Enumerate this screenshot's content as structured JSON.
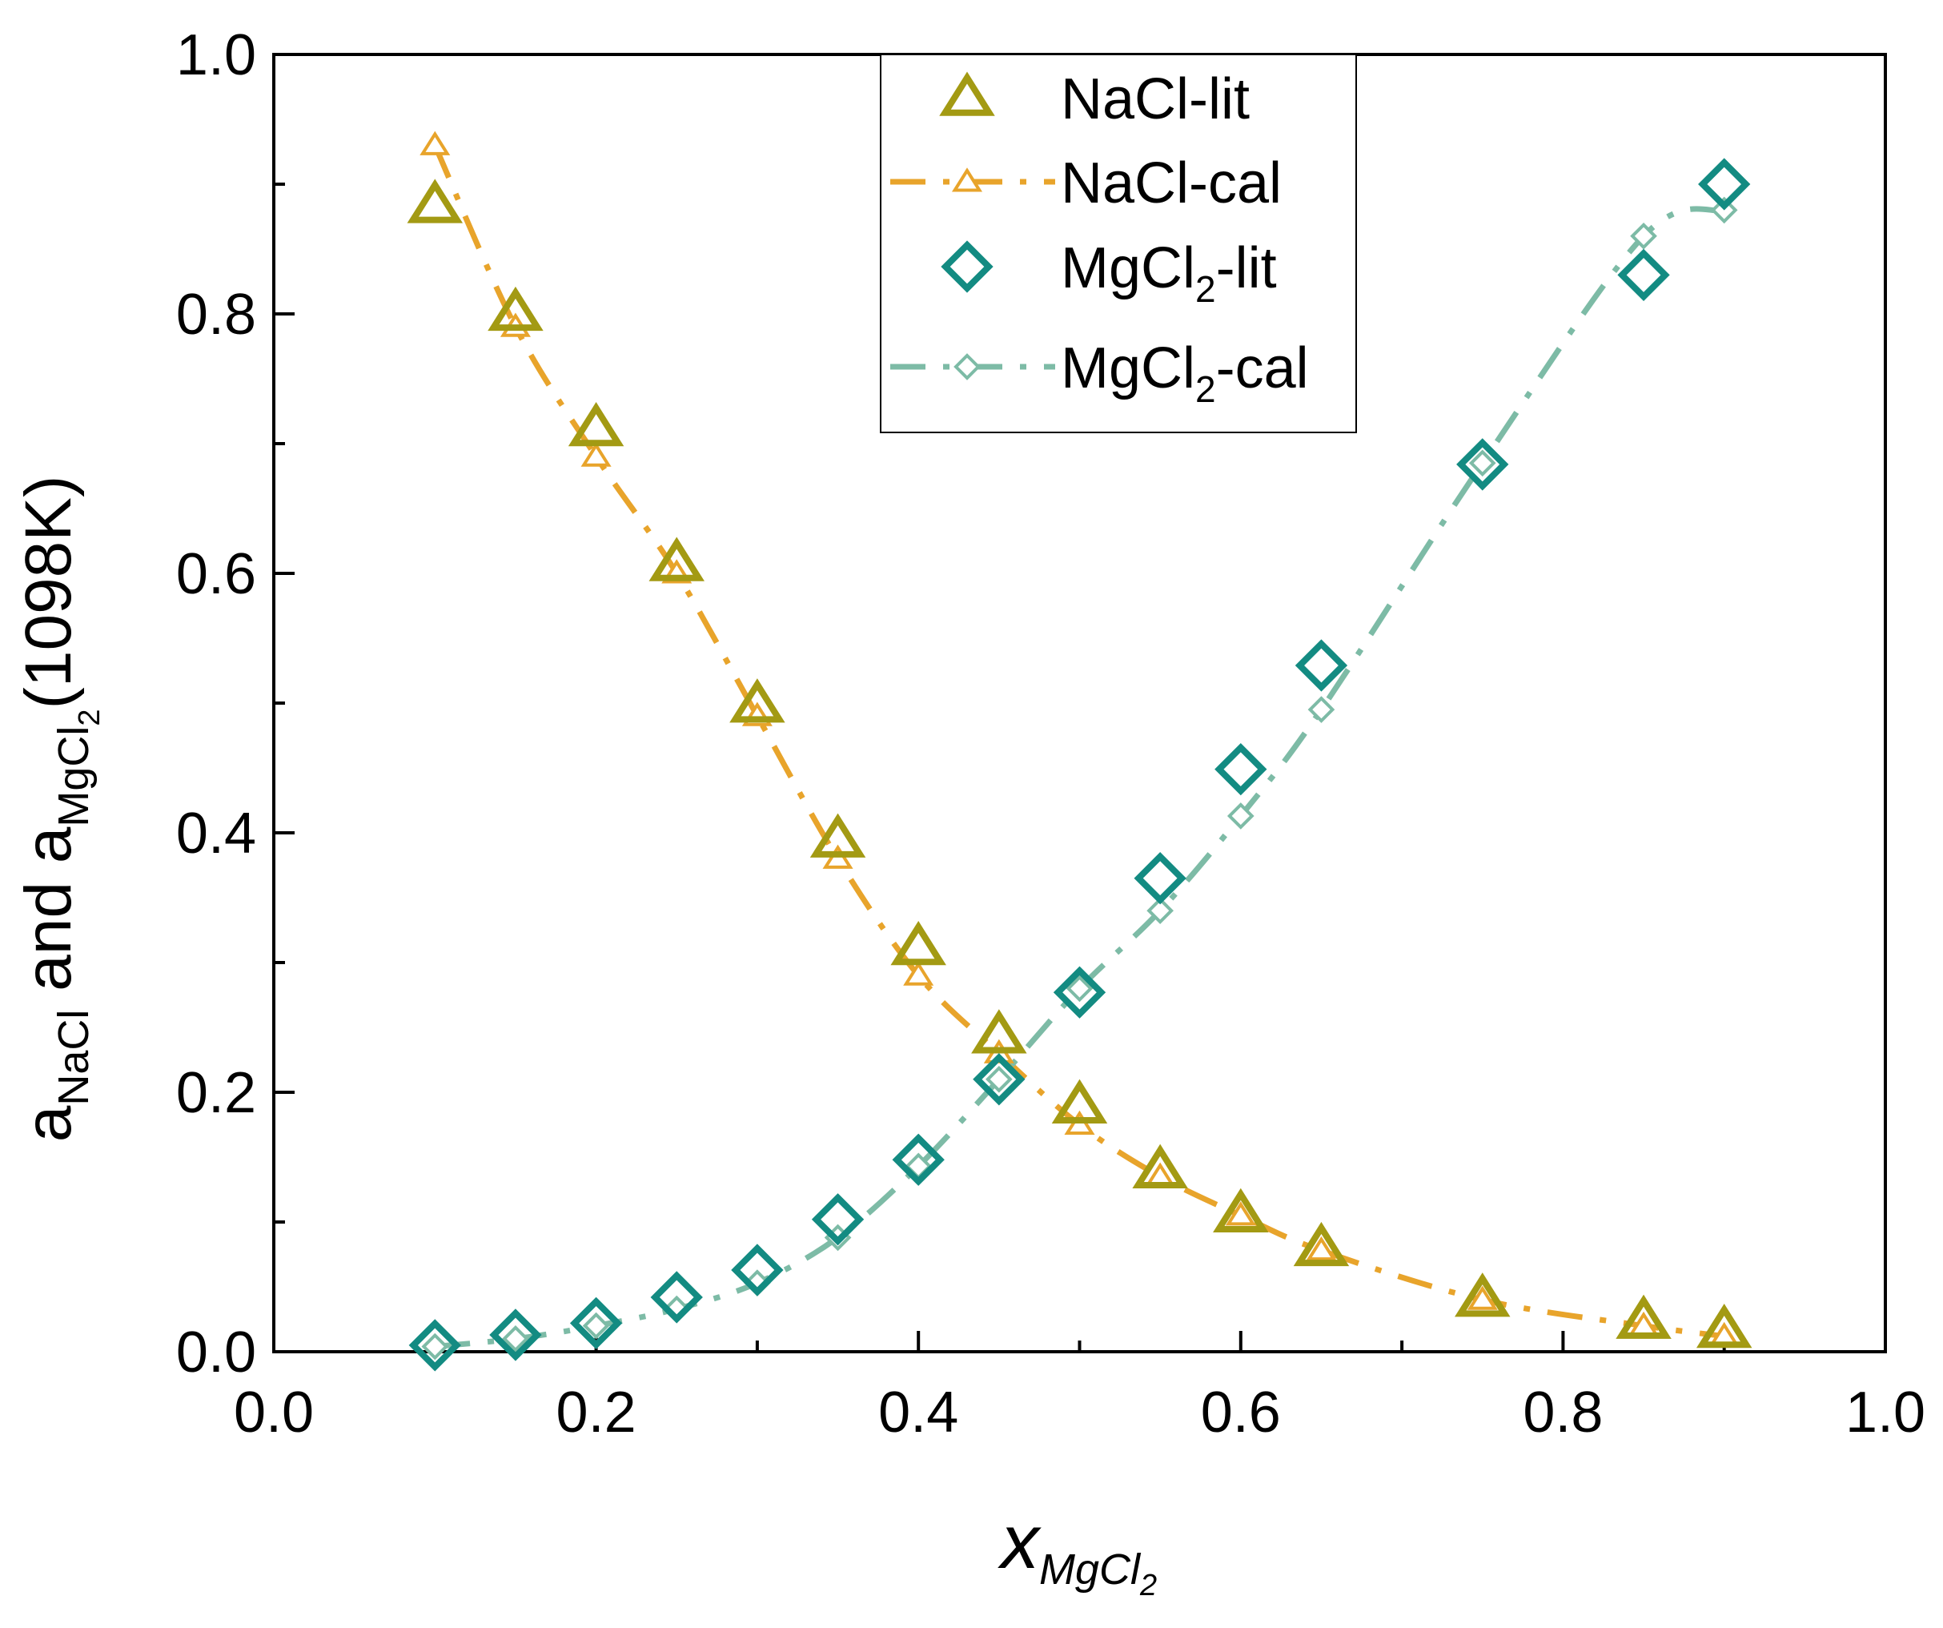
{
  "colors": {
    "nacl_lit": "#A39A13",
    "nacl_cal": "#E8A42B",
    "mgcl2_lit": "#138B82",
    "mgcl2_cal": "#7DBBA6",
    "axis": "#000000"
  },
  "chart_data": {
    "type": "scatter",
    "title": "",
    "xlabel": {
      "main": "x",
      "sub_base": "MgCl",
      "sub_sub": "2"
    },
    "ylabel": {
      "a1": "a",
      "a1_sub": "NaCl",
      "mid": " and ",
      "a2": "a",
      "a2_sub": "MgCl",
      "a2_subsub": "2",
      "tail": "(1098K)"
    },
    "xlim": [
      0.0,
      1.0
    ],
    "ylim": [
      0.0,
      1.0
    ],
    "xticks": [
      "0.0",
      "0.2",
      "0.4",
      "0.6",
      "0.8",
      "1.0"
    ],
    "yticks": [
      "0.0",
      "0.2",
      "0.4",
      "0.6",
      "0.8",
      "1.0"
    ],
    "grid": false,
    "legend_position": "top-center",
    "series": [
      {
        "key": "nacl_lit",
        "name": "NaCl-lit",
        "legend": {
          "base": "NaCl-lit",
          "sub": "",
          "tail": ""
        },
        "marker": "triangle",
        "line": "none",
        "x": [
          0.1,
          0.15,
          0.2,
          0.25,
          0.3,
          0.35,
          0.4,
          0.45,
          0.5,
          0.55,
          0.6,
          0.65,
          0.75,
          0.85,
          0.9
        ],
        "y": [
          0.884,
          0.801,
          0.712,
          0.608,
          0.499,
          0.395,
          0.312,
          0.244,
          0.19,
          0.14,
          0.106,
          0.08,
          0.041,
          0.024,
          0.017
        ]
      },
      {
        "key": "nacl_cal",
        "name": "NaCl-cal",
        "legend": {
          "base": "NaCl-cal",
          "sub": "",
          "tail": ""
        },
        "marker": "small-triangle",
        "line": "dash-dot",
        "x": [
          0.1,
          0.15,
          0.2,
          0.25,
          0.3,
          0.35,
          0.4,
          0.45,
          0.5,
          0.55,
          0.6,
          0.65,
          0.75,
          0.85,
          0.9
        ],
        "y": [
          0.93,
          0.79,
          0.69,
          0.6,
          0.49,
          0.38,
          0.29,
          0.23,
          0.175,
          0.135,
          0.105,
          0.078,
          0.04,
          0.02,
          0.012
        ]
      },
      {
        "key": "mgcl2_lit",
        "name": "MgCl2-lit",
        "legend": {
          "base": "MgCl",
          "sub": "2",
          "tail": "-lit"
        },
        "marker": "diamond",
        "line": "none",
        "x": [
          0.1,
          0.15,
          0.2,
          0.25,
          0.3,
          0.35,
          0.4,
          0.45,
          0.5,
          0.55,
          0.6,
          0.65,
          0.75,
          0.85,
          0.9
        ],
        "y": [
          0.005,
          0.013,
          0.022,
          0.042,
          0.063,
          0.102,
          0.148,
          0.21,
          0.277,
          0.365,
          0.449,
          0.529,
          0.684,
          0.83,
          0.9
        ]
      },
      {
        "key": "mgcl2_cal",
        "name": "MgCl2-cal",
        "legend": {
          "base": "MgCl",
          "sub": "2",
          "tail": "-cal"
        },
        "marker": "small-diamond",
        "line": "dash-dot",
        "x": [
          0.1,
          0.15,
          0.2,
          0.25,
          0.3,
          0.35,
          0.4,
          0.45,
          0.5,
          0.55,
          0.6,
          0.65,
          0.75,
          0.85,
          0.9
        ],
        "y": [
          0.004,
          0.01,
          0.02,
          0.033,
          0.053,
          0.088,
          0.143,
          0.21,
          0.28,
          0.34,
          0.413,
          0.495,
          0.685,
          0.86,
          0.88
        ]
      }
    ]
  }
}
